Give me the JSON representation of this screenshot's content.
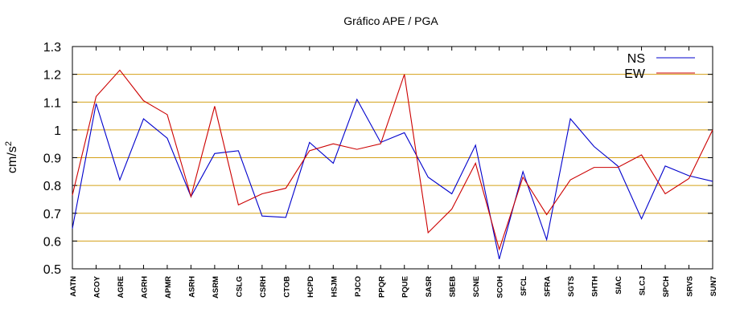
{
  "chart_data": {
    "type": "line",
    "title": "Gráfico  APE / PGA",
    "xlabel": "",
    "ylabel": "cm/s",
    "ylabel_exponent": "2",
    "ylim": [
      0.5,
      1.3
    ],
    "yticks": [
      0.5,
      0.6,
      0.7,
      0.8,
      0.9,
      1,
      1.1,
      1.2,
      1.3
    ],
    "ytick_labels": [
      "0.5",
      "0.6",
      "0.7",
      "0.8",
      "0.9",
      "1",
      "1.1",
      "1.2",
      "1.3"
    ],
    "grid": "horizontal",
    "legend_position": "top-right",
    "categories": [
      "AATN",
      "ACOY",
      "AGRE",
      "AGRH",
      "APMR",
      "ASRH",
      "ASRM",
      "CSLG",
      "CSRH",
      "CTOB",
      "HCPD",
      "HSJM",
      "PJCO",
      "PPQR",
      "PQUE",
      "SASR",
      "SBEB",
      "SCNE",
      "SCOH",
      "SFCL",
      "SFRA",
      "SGTS",
      "SHTH",
      "SIAC",
      "SLCJ",
      "SPCH",
      "SRVS",
      "SUN7"
    ],
    "series": [
      {
        "name": "NS",
        "color": "#0000cc",
        "values": [
          0.645,
          1.095,
          0.82,
          1.04,
          0.97,
          0.76,
          0.915,
          0.925,
          0.69,
          0.685,
          0.955,
          0.88,
          1.11,
          0.955,
          0.99,
          0.83,
          0.77,
          0.945,
          0.535,
          0.85,
          0.605,
          1.04,
          0.94,
          0.87,
          0.68,
          0.87,
          0.835,
          0.815
        ]
      },
      {
        "name": "EW",
        "color": "#cc0000",
        "values": [
          0.765,
          1.12,
          1.215,
          1.105,
          1.055,
          0.76,
          1.085,
          0.73,
          0.77,
          0.79,
          0.925,
          0.95,
          0.93,
          0.95,
          1.2,
          0.63,
          0.715,
          0.88,
          0.57,
          0.83,
          0.695,
          0.82,
          0.865,
          0.865,
          0.91,
          0.77,
          0.825,
          1.0
        ]
      }
    ]
  }
}
